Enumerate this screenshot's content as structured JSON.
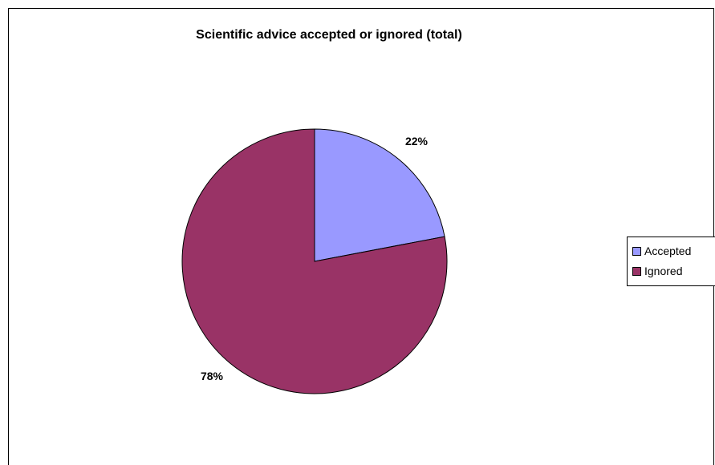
{
  "chart_data": {
    "type": "pie",
    "title": "Scientific advice accepted or ignored (total)",
    "categories": [
      "Accepted",
      "Ignored"
    ],
    "values": [
      22,
      78
    ],
    "data_labels": [
      "22%",
      "78%"
    ],
    "colors": [
      "#9999ff",
      "#993366"
    ],
    "legend_position": "right"
  }
}
